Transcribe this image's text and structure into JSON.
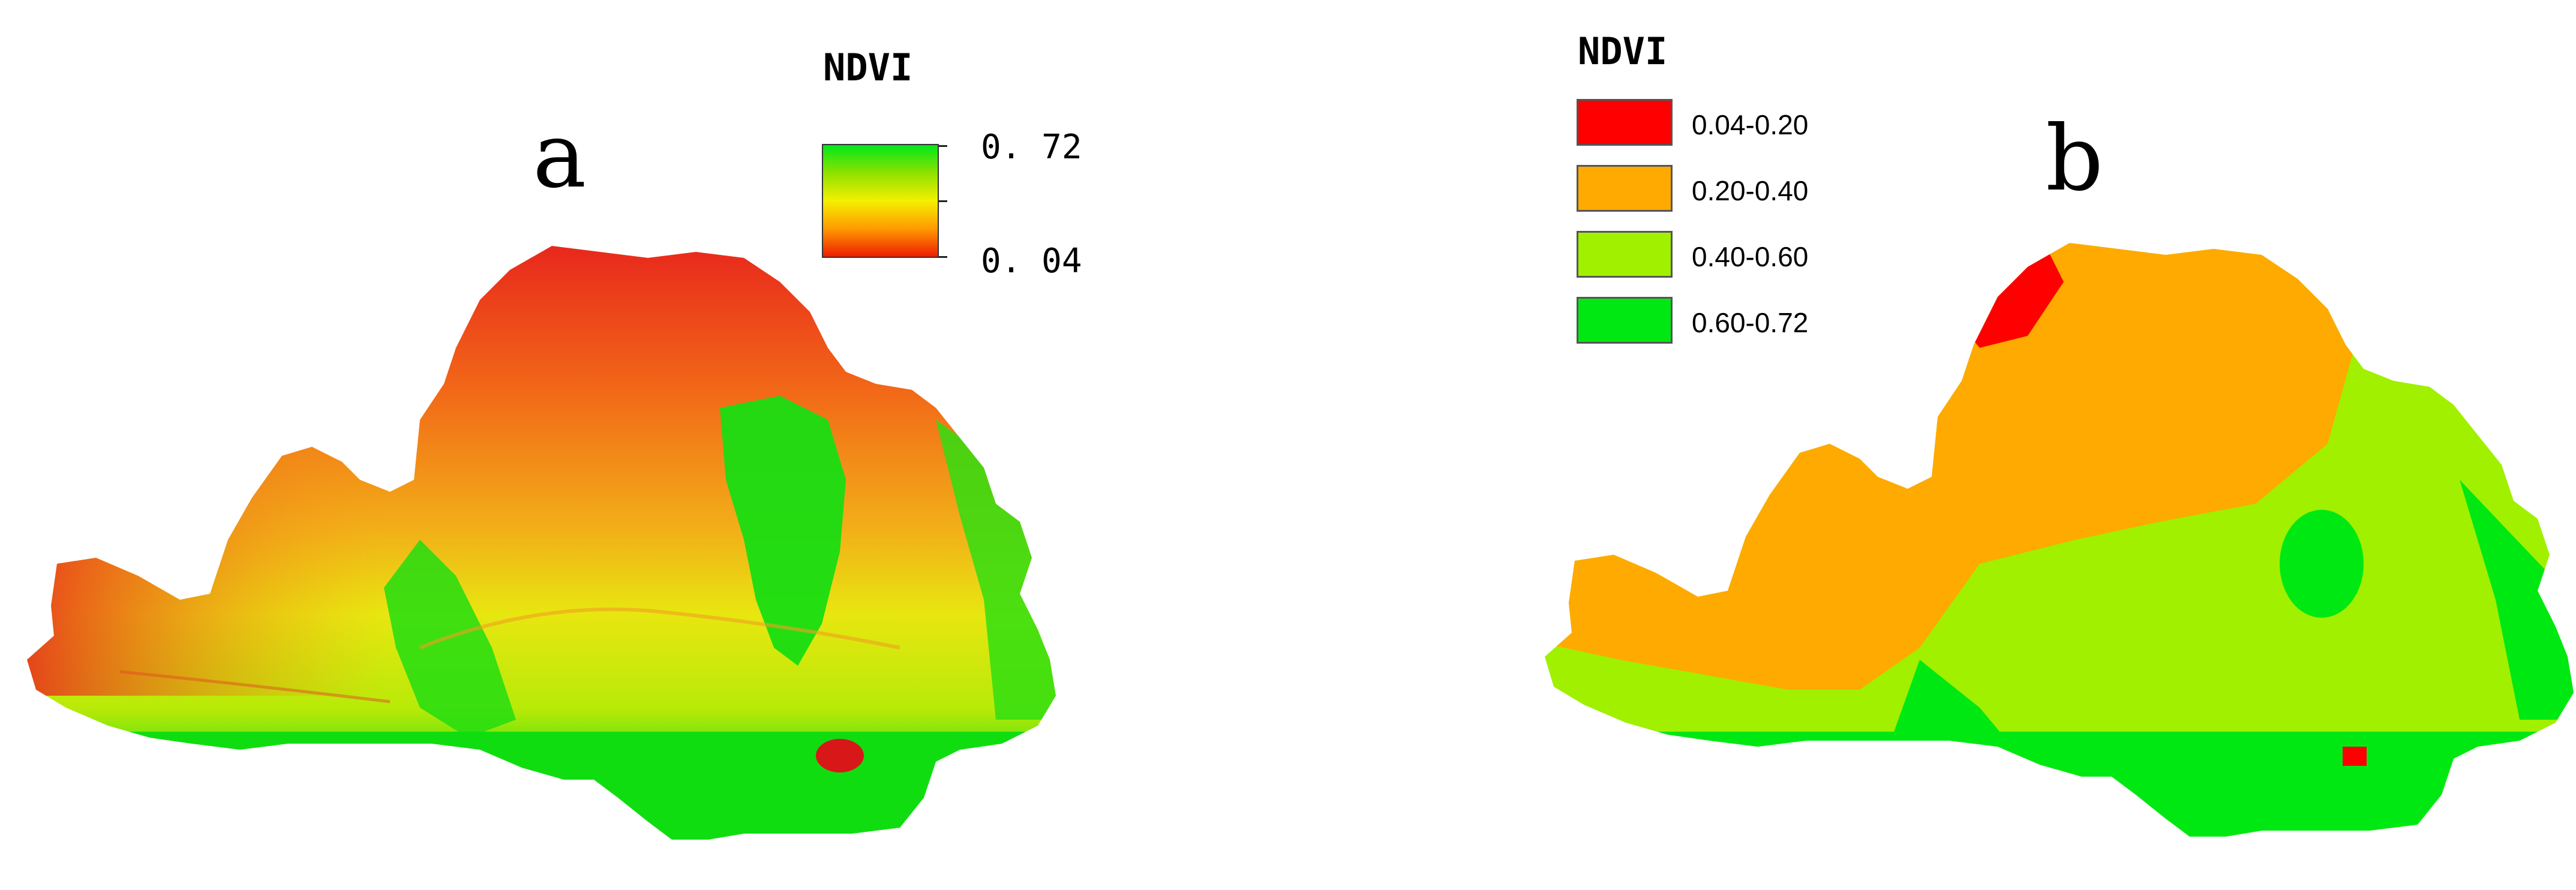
{
  "panel_a": {
    "letter": "a",
    "legend": {
      "title": "NDVI",
      "max_label": "0. 72",
      "min_label": "0. 04",
      "ramp_colors": [
        "#00e81a",
        "#8fe100",
        "#f4f000",
        "#ff9a00",
        "#ee1d00"
      ]
    }
  },
  "panel_b": {
    "letter": "b",
    "legend": {
      "title": "NDVI",
      "classes": [
        {
          "label": "0.04-0.20",
          "color": "#ff0000"
        },
        {
          "label": "0.20-0.40",
          "color": "#ffaa00"
        },
        {
          "label": "0.40-0.60",
          "color": "#a0f000"
        },
        {
          "label": "0.60-0.72",
          "color": "#00e812"
        }
      ]
    }
  },
  "colors": {
    "green": "#10dd10",
    "yellowgreen": "#a8ea08",
    "yellow": "#e8ec10",
    "orange": "#f2a014",
    "red": "#e8301c",
    "class_orange": "#ffaa00",
    "class_light_green": "#a0f000",
    "class_green": "#00e812",
    "class_red": "#ff0000"
  }
}
